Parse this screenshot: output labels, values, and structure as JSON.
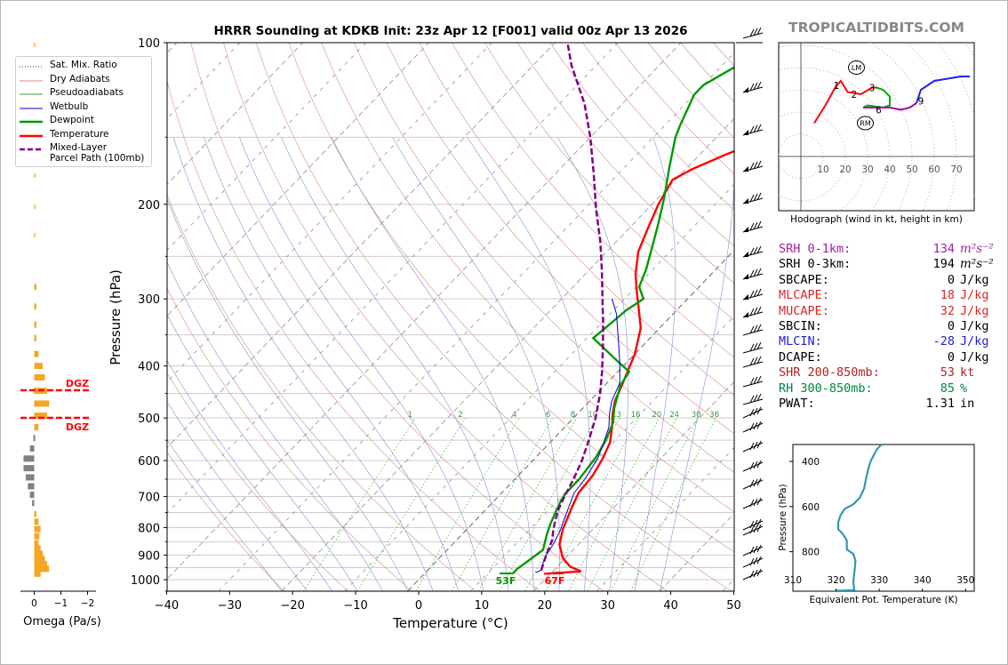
{
  "page": {
    "title": "HRRR Sounding at KDKB Init: 23z Apr 12 [F001] valid 00z Apr 13 2026",
    "brand": "TROPICALTIDBITS.COM"
  },
  "colors": {
    "temperature": "#ff0000",
    "dewpoint": "#009900",
    "wetbulb": "#0000cc",
    "parcel": "#800080",
    "dry_adiabat": "#d98c8c",
    "moist_adiabat": "#8c8cd9",
    "mixing_ratio": "#33aa33",
    "isotherm": "#444444",
    "omega_pos": "#f5a623",
    "omega_neg": "#808080",
    "dgz": "#ff0000",
    "theta_e": "#3399aa"
  },
  "skewt": {
    "xlabel": "Temperature (°C)",
    "ylabel": "Pressure (hPa)",
    "pressure_ticks": [
      100,
      200,
      300,
      400,
      500,
      600,
      700,
      800,
      900,
      1000
    ],
    "temp_ticks": [
      -40,
      -30,
      -20,
      -10,
      0,
      10,
      20,
      30,
      40,
      50
    ],
    "mixing_ratio_labels": [
      "1",
      "2",
      "4",
      "6",
      "8",
      "10",
      "13",
      "16",
      "20",
      "24",
      "30",
      "36"
    ],
    "surface_dewpoint_label": "53F",
    "surface_temp_label": "67F"
  },
  "legend": {
    "items": [
      {
        "label": "Sat. Mix. Ratio",
        "style": "dotted",
        "color_key": "isotherm"
      },
      {
        "label": "Dry Adiabats",
        "style": "thin",
        "color_key": "dry_adiabat"
      },
      {
        "label": "Pseudoadiabats",
        "style": "thin",
        "color_key": "mixing_ratio"
      },
      {
        "label": "Wetbulb",
        "style": "thin",
        "color_key": "wetbulb"
      },
      {
        "label": "Dewpoint",
        "style": "thick",
        "color_key": "dewpoint"
      },
      {
        "label": "Temperature",
        "style": "thick",
        "color_key": "temperature"
      },
      {
        "label": "Mixed-Layer\nParcel Path (100mb)",
        "style": "dashed",
        "color_key": "parcel"
      }
    ]
  },
  "omega": {
    "xlabel": "Omega (Pa/s)",
    "ticks": [
      "0",
      "−1",
      "−2"
    ],
    "dgz_label": "DGZ"
  },
  "hodograph": {
    "caption": "Hodograph (wind in kt, height in km)",
    "ring_labels": [
      "10",
      "20",
      "30",
      "40",
      "50",
      "60",
      "70"
    ],
    "height_labels": [
      "1",
      "2",
      "3",
      "6",
      "9"
    ],
    "lm_label": "LM",
    "rm_label": "RM"
  },
  "stats": [
    {
      "label": "SRH 0-1km:",
      "value": "134",
      "unit": "m²s⁻²",
      "color": "#a020a0"
    },
    {
      "label": "SRH 0-3km:",
      "value": "194",
      "unit": "m²s⁻²",
      "color": "#000000"
    },
    {
      "label": "SBCAPE:",
      "value": "0",
      "unit": "J/kg",
      "color": "#000000"
    },
    {
      "label": "MLCAPE:",
      "value": "18",
      "unit": "J/kg",
      "color": "#d62728"
    },
    {
      "label": "MUCAPE:",
      "value": "32",
      "unit": "J/kg",
      "color": "#d62728"
    },
    {
      "label": "SBCIN:",
      "value": "0",
      "unit": "J/kg",
      "color": "#000000"
    },
    {
      "label": "MLCIN:",
      "value": "-28",
      "unit": "J/kg",
      "color": "#2222cc"
    },
    {
      "label": "DCAPE:",
      "value": "0",
      "unit": "J/kg",
      "color": "#000000"
    },
    {
      "label": "SHR 200-850mb:",
      "value": "53",
      "unit": "kt",
      "color": "#b22222"
    },
    {
      "label": "RH 300-850mb:",
      "value": "85",
      "unit": "%",
      "color": "#008844"
    },
    {
      "label": "PWAT:",
      "value": "1.31",
      "unit": "in",
      "color": "#000000"
    }
  ],
  "thetae": {
    "xlabel": "Equivalent Pot. Temperature (K)",
    "ylabel": "Pressure (hPa)",
    "x_ticks": [
      310,
      320,
      330,
      340,
      350
    ],
    "y_ticks": [
      400,
      600,
      800
    ]
  },
  "chart_data": [
    {
      "type": "line",
      "name": "skewt",
      "title": "HRRR Sounding at KDKB Init: 23z Apr 12 [F001] valid 00z Apr 13 2026",
      "xlabel": "Temperature (°C)",
      "ylabel": "Pressure (hPa)",
      "xlim": [
        -40,
        50
      ],
      "ylim": [
        1050,
        100
      ],
      "y_scale": "log",
      "series": [
        {
          "name": "Temperature",
          "color_key": "temperature",
          "points": [
            [
              19,
              975
            ],
            [
              24.5,
              965
            ],
            [
              22,
              945
            ],
            [
              19.5,
              910
            ],
            [
              17,
              860
            ],
            [
              15.2,
              805
            ],
            [
              13.5,
              740
            ],
            [
              12.2,
              690
            ],
            [
              11.8,
              640
            ],
            [
              10.8,
              595
            ],
            [
              9.5,
              555
            ],
            [
              7.5,
              520
            ],
            [
              5.5,
              490
            ],
            [
              4,
              465
            ],
            [
              2.5,
              430
            ],
            [
              0,
              380
            ],
            [
              -3,
              340
            ],
            [
              -6,
              315
            ],
            [
              -9,
              292
            ],
            [
              -12,
              270
            ],
            [
              -15,
              245
            ],
            [
              -17,
              222
            ],
            [
              -19,
              200
            ],
            [
              -20.5,
              180
            ],
            [
              -19,
              172
            ],
            [
              -16,
              162
            ],
            [
              -11,
              148
            ],
            [
              -8,
              138
            ],
            [
              -4,
              123
            ],
            [
              -3,
              118
            ],
            [
              -1,
              110
            ],
            [
              0.3,
              104
            ],
            [
              0.3,
              100
            ]
          ]
        },
        {
          "name": "Dewpoint",
          "color_key": "dewpoint",
          "points": [
            [
              14,
              975
            ],
            [
              14,
              955
            ],
            [
              14.5,
              925
            ],
            [
              15.2,
              880
            ],
            [
              13.5,
              825
            ],
            [
              12.5,
              790
            ],
            [
              11.5,
              750
            ],
            [
              10.5,
              710
            ],
            [
              10.2,
              690
            ],
            [
              10.2,
              650
            ],
            [
              9.5,
              590
            ],
            [
              8.5,
              550
            ],
            [
              7,
              510
            ],
            [
              5,
              480
            ],
            [
              2.5,
              435
            ],
            [
              1.8,
              410
            ],
            [
              -2,
              390
            ],
            [
              -9,
              355
            ],
            [
              -8,
              315
            ],
            [
              -7,
              300
            ],
            [
              -9.5,
              285
            ],
            [
              -11,
              265
            ],
            [
              -13,
              245
            ],
            [
              -16,
              218
            ],
            [
              -19,
              195
            ],
            [
              -23,
              170
            ],
            [
              -26.5,
              150
            ],
            [
              -27.5,
              143
            ],
            [
              -30,
              125
            ],
            [
              -30,
              120
            ],
            [
              -28,
              112
            ],
            [
              -25,
              100
            ]
          ]
        },
        {
          "name": "Wetbulb",
          "color_key": "wetbulb",
          "points": [
            [
              17.5,
              970
            ],
            [
              18,
              960
            ],
            [
              17.5,
              945
            ],
            [
              16.5,
              900
            ],
            [
              16,
              860
            ],
            [
              15,
              810
            ],
            [
              13,
              740
            ],
            [
              11.5,
              690
            ],
            [
              11,
              645
            ],
            [
              10,
              595
            ],
            [
              8.5,
              555
            ],
            [
              7,
              520
            ],
            [
              5,
              490
            ],
            [
              3.5,
              465
            ],
            [
              2,
              430
            ],
            [
              -1,
              395
            ],
            [
              -4.5,
              360
            ],
            [
              -9,
              320
            ],
            [
              -12,
              300
            ]
          ]
        },
        {
          "name": "Mixed-Layer Parcel Path (100mb)",
          "color_key": "parcel",
          "points": [
            [
              18,
              960
            ],
            [
              16.5,
              900
            ],
            [
              15.2,
              845
            ],
            [
              13.7,
              805
            ],
            [
              12.5,
              770
            ],
            [
              11.5,
              740
            ],
            [
              10.5,
              700
            ],
            [
              9.3,
              650
            ],
            [
              7.8,
              600
            ],
            [
              5.8,
              550
            ],
            [
              3.5,
              500
            ],
            [
              0.5,
              450
            ],
            [
              -2.5,
              410
            ],
            [
              -6,
              370
            ],
            [
              -9.5,
              335
            ],
            [
              -13.5,
              300
            ],
            [
              -18,
              265
            ],
            [
              -22.5,
              235
            ],
            [
              -28,
              205
            ],
            [
              -34,
              175
            ],
            [
              -40,
              150
            ],
            [
              -46,
              130
            ],
            [
              -54,
              110
            ],
            [
              -58,
              100
            ]
          ]
        }
      ],
      "surface": {
        "temperature_F": 67,
        "dewpoint_F": 53
      }
    },
    {
      "type": "bar",
      "name": "omega",
      "xlabel": "Omega (Pa/s)",
      "xlim": [
        0.3,
        -2.2
      ],
      "ylim": [
        1050,
        100
      ],
      "y_scale": "log",
      "dgz_hpa": [
        445,
        500
      ],
      "bars": [
        [
          975,
          0.15
        ],
        [
          955,
          0.35
        ],
        [
          935,
          0.3
        ],
        [
          915,
          0.25
        ],
        [
          895,
          0.2
        ],
        [
          875,
          0.15
        ],
        [
          855,
          0.1
        ],
        [
          830,
          0.12
        ],
        [
          805,
          0.15
        ],
        [
          780,
          0.1
        ],
        [
          755,
          0.05
        ],
        [
          720,
          -0.05
        ],
        [
          695,
          -0.1
        ],
        [
          670,
          -0.15
        ],
        [
          645,
          -0.2
        ],
        [
          620,
          -0.25
        ],
        [
          595,
          -0.25
        ],
        [
          570,
          -0.1
        ],
        [
          545,
          -0.02
        ],
        [
          520,
          0.1
        ],
        [
          495,
          0.3
        ],
        [
          470,
          0.35
        ],
        [
          445,
          0.3
        ],
        [
          420,
          0.25
        ],
        [
          400,
          0.2
        ],
        [
          380,
          0.1
        ],
        [
          355,
          0.05
        ],
        [
          335,
          0.05
        ],
        [
          310,
          0.05
        ],
        [
          285,
          0.05
        ]
      ]
    },
    {
      "type": "line",
      "name": "hodograph",
      "xlabel": "",
      "xlim": [
        -10,
        78
      ],
      "ylim": [
        -25,
        52
      ],
      "segments": [
        {
          "color": "#ff0000",
          "points": [
            [
              6,
              15
            ],
            [
              11,
              23
            ],
            [
              16,
              32
            ],
            [
              18,
              34
            ],
            [
              21,
              29
            ],
            [
              27,
              28
            ],
            [
              32,
              31
            ],
            [
              34,
              31
            ]
          ]
        },
        {
          "color": "#00aa00",
          "points": [
            [
              34,
              31
            ],
            [
              37,
              30
            ],
            [
              40,
              27
            ],
            [
              40,
              23
            ],
            [
              37,
              22
            ],
            [
              30,
              23
            ],
            [
              28,
              22
            ]
          ]
        },
        {
          "color": "#aa00aa",
          "points": [
            [
              28,
              22
            ],
            [
              33,
              22
            ],
            [
              40,
              22
            ],
            [
              45,
              21
            ],
            [
              49,
              22
            ],
            [
              52,
              24
            ]
          ]
        },
        {
          "color": "#2222ee",
          "points": [
            [
              52,
              24
            ],
            [
              54,
              30
            ],
            [
              60,
              34
            ],
            [
              72,
              36
            ],
            [
              76,
              36
            ]
          ]
        }
      ],
      "height_points": [
        {
          "label": "1",
          "x": 16,
          "y": 32
        },
        {
          "label": "2",
          "x": 24,
          "y": 28
        },
        {
          "label": "3",
          "x": 32,
          "y": 31
        },
        {
          "label": "6",
          "x": 35,
          "y": 21
        },
        {
          "label": "9",
          "x": 54,
          "y": 25
        }
      ],
      "lm": [
        25,
        40
      ],
      "rm": [
        29,
        15
      ]
    },
    {
      "type": "line",
      "name": "theta_e",
      "xlabel": "Equivalent Pot. Temperature (K)",
      "ylabel": "Pressure (hPa)",
      "xlim": [
        310,
        352
      ],
      "ylim": [
        975,
        325
      ],
      "points": [
        [
          330.5,
          325
        ],
        [
          329.5,
          345
        ],
        [
          328.5,
          380
        ],
        [
          328,
          400
        ],
        [
          327.5,
          430
        ],
        [
          327,
          470
        ],
        [
          326.5,
          520
        ],
        [
          325.5,
          560
        ],
        [
          324,
          590
        ],
        [
          322,
          610
        ],
        [
          321,
          640
        ],
        [
          320.5,
          670
        ],
        [
          320.5,
          700
        ],
        [
          321.5,
          720
        ],
        [
          322.5,
          750
        ],
        [
          322.5,
          790
        ],
        [
          324,
          810
        ],
        [
          324.5,
          840
        ],
        [
          324.3,
          880
        ],
        [
          324,
          930
        ],
        [
          324.2,
          970
        ],
        [
          322,
          972
        ],
        [
          320,
          973
        ]
      ]
    }
  ]
}
